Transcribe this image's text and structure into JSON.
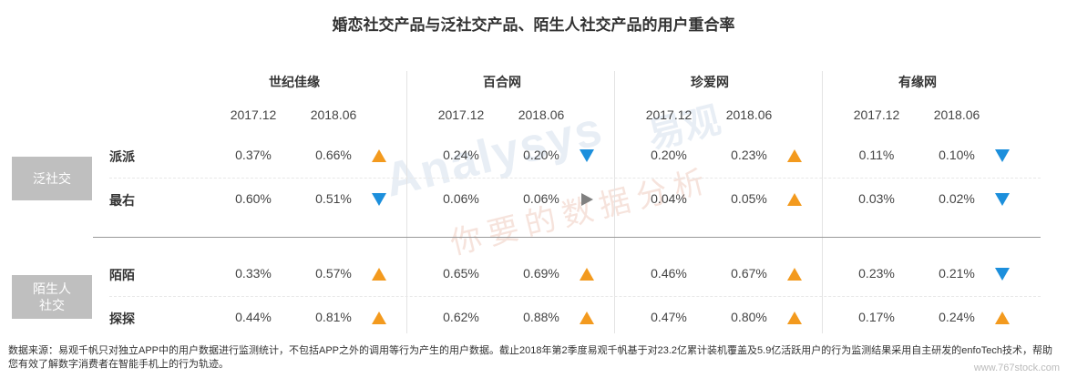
{
  "chart_data": {
    "type": "table",
    "title": "婚恋社交产品与泛社交产品、陌生人社交产品的用户重合率",
    "periods": [
      "2017.12",
      "2018.06"
    ],
    "brands": [
      "世纪佳缘",
      "百合网",
      "珍爱网",
      "有缘网"
    ],
    "groups": [
      {
        "label": [
          "泛社交"
        ],
        "rows": [
          "派派",
          "最右"
        ]
      },
      {
        "label": [
          "陌生人",
          "社交"
        ],
        "rows": [
          "陌陌",
          "探探"
        ]
      }
    ],
    "rows": [
      {
        "name": "派派",
        "values": [
          [
            "0.37%",
            "0.66%",
            "up"
          ],
          [
            "0.24%",
            "0.20%",
            "down"
          ],
          [
            "0.20%",
            "0.23%",
            "up"
          ],
          [
            "0.11%",
            "0.10%",
            "down"
          ]
        ]
      },
      {
        "name": "最右",
        "values": [
          [
            "0.60%",
            "0.51%",
            "down"
          ],
          [
            "0.06%",
            "0.06%",
            "flat"
          ],
          [
            "0.04%",
            "0.05%",
            "up"
          ],
          [
            "0.03%",
            "0.02%",
            "down"
          ]
        ]
      },
      {
        "name": "陌陌",
        "values": [
          [
            "0.33%",
            "0.57%",
            "up"
          ],
          [
            "0.65%",
            "0.69%",
            "up"
          ],
          [
            "0.46%",
            "0.67%",
            "up"
          ],
          [
            "0.23%",
            "0.21%",
            "down"
          ]
        ]
      },
      {
        "name": "探探",
        "values": [
          [
            "0.44%",
            "0.81%",
            "up"
          ],
          [
            "0.62%",
            "0.88%",
            "up"
          ],
          [
            "0.47%",
            "0.80%",
            "up"
          ],
          [
            "0.17%",
            "0.24%",
            "up"
          ]
        ]
      }
    ],
    "trend_colors": {
      "up": "#f39a1e",
      "down": "#1c8fdc",
      "flat": "#808080"
    }
  },
  "watermark": {
    "latin": "Analysys",
    "cn": "易观",
    "slogan": "你要的数据分析"
  },
  "footer": {
    "source": "数据来源：易观千帆只对独立APP中的用户数据进行监测统计，不包括APP之外的调用等行为产生的用户数据。截止2018年第2季度易观千帆基于对23.2亿累计装机覆盖及5.9亿活跃用户的行为监测结果采用自主研发的enfoTech技术，帮助您有效了解数字消费者在智能手机上的行为轨迹。",
    "site": "www.767stock.com"
  }
}
